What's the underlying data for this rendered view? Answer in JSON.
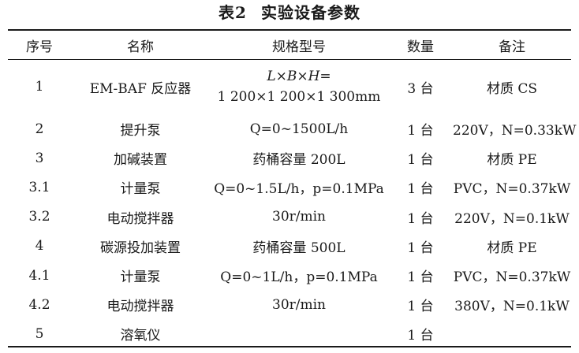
{
  "table": {
    "title_label": "表2",
    "title_text": "实验设备参数",
    "headers": {
      "col_no": "序号",
      "col_name": "名称",
      "col_spec": "规格型号",
      "col_qty": "数量",
      "col_note": "备注"
    },
    "rows": [
      {
        "no": "1",
        "name": "EM-BAF 反应器",
        "spec_line1": "L×B×H=",
        "spec_line2": "1 200×1 200×1 300mm",
        "qty": "3 台",
        "note": "材质 CS"
      },
      {
        "no": "2",
        "name": "提升泵",
        "spec": "Q=0~1500L/h",
        "qty": "1 台",
        "note": "220V，N=0.33kW"
      },
      {
        "no": "3",
        "name": "加碱装置",
        "spec": "药桶容量 200L",
        "qty": "1 台",
        "note": "材质 PE"
      },
      {
        "no": "3.1",
        "name": "计量泵",
        "spec": "Q=0~1.5L/h，p=0.1MPa",
        "qty": "1 台",
        "note": "PVC，N=0.37kW"
      },
      {
        "no": "3.2",
        "name": "电动搅拌器",
        "spec": "30r/min",
        "qty": "1 台",
        "note": "220V，N=0.1kW"
      },
      {
        "no": "4",
        "name": "碳源投加装置",
        "spec": "药桶容量 500L",
        "qty": "1 台",
        "note": "材质 PE"
      },
      {
        "no": "4.1",
        "name": "计量泵",
        "spec": "Q=0~1L/h，p=0.1MPa",
        "qty": "1 台",
        "note": "PVC，N=0.37kW"
      },
      {
        "no": "4.2",
        "name": "电动搅拌器",
        "spec": "30r/min",
        "qty": "1 台",
        "note": "380V，N=0.1kW"
      },
      {
        "no": "5",
        "name": "溶氧仪",
        "spec": "",
        "qty": "1 台",
        "note": ""
      }
    ]
  }
}
